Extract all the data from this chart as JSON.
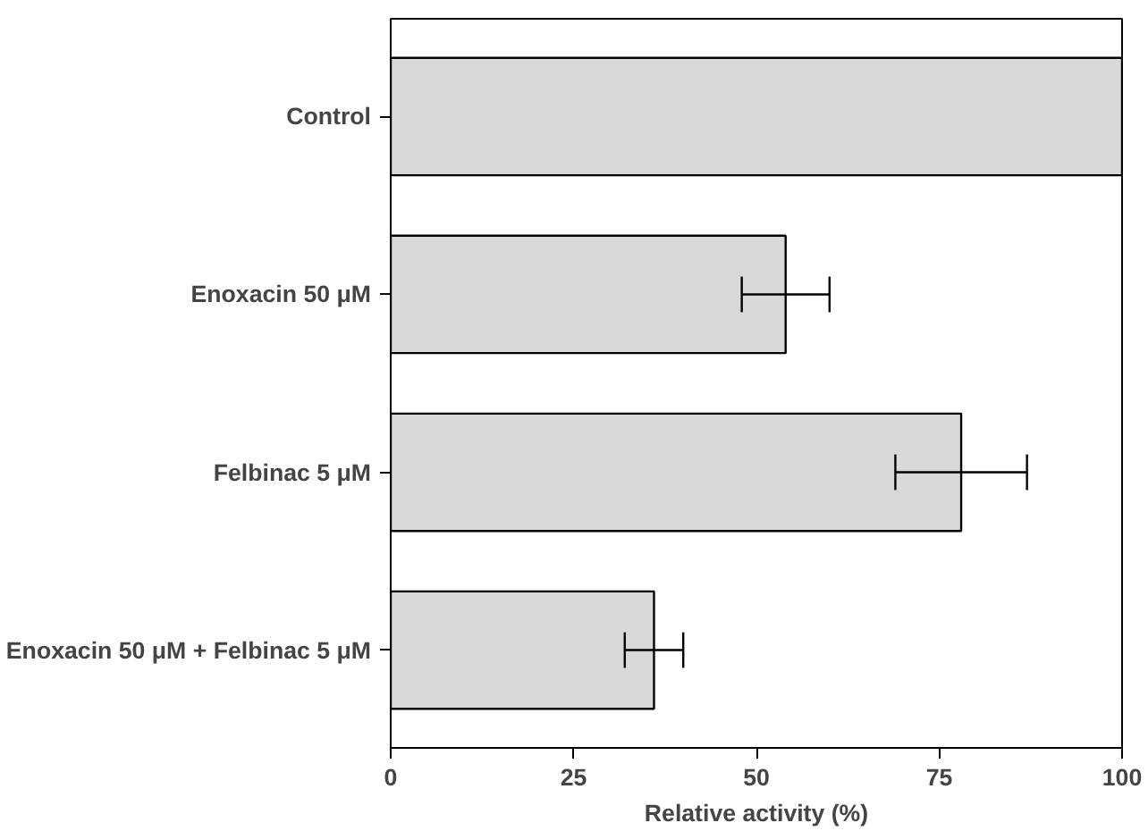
{
  "chart_data": {
    "type": "bar",
    "orientation": "horizontal",
    "xlabel": "Relative activity (%)",
    "categories": [
      "Control",
      "Enoxacin 50 μM",
      "Felbinac 5 μM",
      "Enoxacin 50 μM + Felbinac 5 μM"
    ],
    "values": [
      100,
      54,
      78,
      36
    ],
    "errors": [
      null,
      6,
      9,
      4
    ],
    "color": "#d9d9d9",
    "xlim": [
      0,
      100
    ],
    "xticks": [
      0,
      25,
      50,
      75,
      100
    ],
    "grid": false
  }
}
